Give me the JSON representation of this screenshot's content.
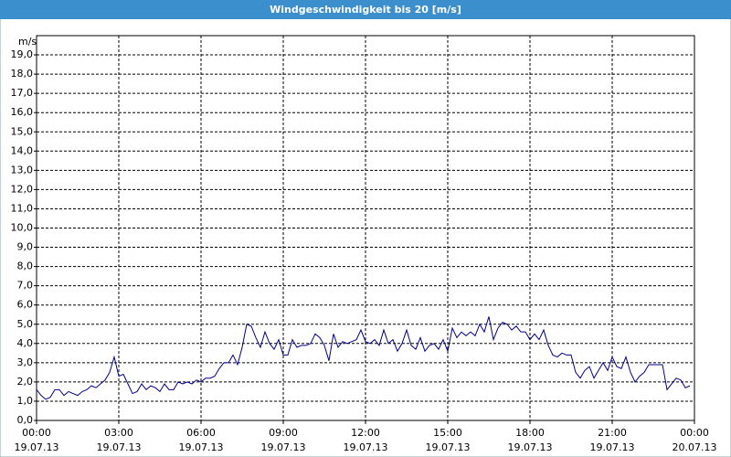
{
  "chart_data": {
    "type": "line",
    "title": "Windgeschwindigkeit bis 20 [m/s]",
    "y_unit": "m/s",
    "x": [
      0,
      10,
      20,
      30,
      40,
      50,
      60,
      70,
      80,
      90,
      100,
      110,
      120,
      130,
      140,
      150,
      160,
      170,
      180,
      190,
      200,
      210,
      220,
      230,
      240,
      250,
      260,
      270,
      280,
      290,
      300,
      310,
      320,
      330,
      340,
      350,
      360,
      370,
      380,
      390,
      400,
      410,
      420,
      430,
      440,
      450,
      460,
      470,
      480,
      490,
      500,
      510,
      520,
      530,
      540,
      550,
      560,
      570,
      580,
      590,
      600,
      610,
      620,
      630,
      640,
      650,
      660,
      670,
      680,
      690,
      700,
      710,
      720,
      730,
      740,
      750,
      760,
      770,
      780,
      790,
      800,
      810,
      820,
      830,
      840,
      850,
      860,
      870,
      880,
      890,
      900,
      910,
      920,
      930,
      940,
      950,
      960,
      970,
      980,
      990,
      1000,
      1010,
      1020,
      1030,
      1040,
      1050,
      1060,
      1070,
      1080,
      1090,
      1100,
      1110,
      1120,
      1130,
      1140,
      1150,
      1160,
      1170,
      1180,
      1190,
      1200,
      1210,
      1220,
      1230,
      1240,
      1250,
      1260,
      1270,
      1280,
      1290,
      1300,
      1310,
      1320,
      1330,
      1340,
      1350,
      1360,
      1370,
      1380,
      1390,
      1400,
      1410,
      1420,
      1430
    ],
    "series": [
      {
        "name": "Windgeschwindigkeit",
        "color": "#00008b",
        "values": [
          1.6,
          1.3,
          1.1,
          1.2,
          1.6,
          1.6,
          1.3,
          1.5,
          1.4,
          1.3,
          1.5,
          1.6,
          1.8,
          1.7,
          1.9,
          2.1,
          2.5,
          3.3,
          2.3,
          2.4,
          1.9,
          1.4,
          1.5,
          1.9,
          1.6,
          1.8,
          1.7,
          1.5,
          1.9,
          1.6,
          1.6,
          2.0,
          1.9,
          2.0,
          1.9,
          2.1,
          2.0,
          2.2,
          2.2,
          2.3,
          2.7,
          3.0,
          3.0,
          3.4,
          2.9,
          3.8,
          5.0,
          4.9,
          4.3,
          3.8,
          4.6,
          4.0,
          3.7,
          4.2,
          3.4,
          3.4,
          4.2,
          3.8,
          3.9,
          3.9,
          4.0,
          4.5,
          4.3,
          3.9,
          3.1,
          4.5,
          3.8,
          4.1,
          4.0,
          4.1,
          4.2,
          4.7,
          4.1,
          4.0,
          4.2,
          3.9,
          4.7,
          4.0,
          4.2,
          3.6,
          4.0,
          4.7,
          3.9,
          3.7,
          4.3,
          3.6,
          3.9,
          4.0,
          3.7,
          4.2,
          3.6,
          4.8,
          4.3,
          4.6,
          4.4,
          4.6,
          4.4,
          5.0,
          4.6,
          5.4,
          4.2,
          4.8,
          5.1,
          5.0,
          4.7,
          4.9,
          4.6,
          4.6,
          4.2,
          4.5,
          4.2,
          4.7,
          3.9,
          3.4,
          3.3,
          3.5,
          3.4,
          3.4,
          2.5,
          2.2,
          2.6,
          2.8,
          2.2,
          2.6,
          3.0,
          2.6,
          3.3,
          2.8,
          2.7,
          3.3,
          2.5,
          2.0,
          2.3,
          2.5,
          2.9,
          2.9,
          2.9,
          2.9,
          1.6,
          1.9,
          2.2,
          2.1,
          1.7,
          1.8
        ]
      }
    ],
    "xlim": [
      0,
      1440
    ],
    "xticks": [
      {
        "value": 0,
        "label": "00:00"
      },
      {
        "value": 180,
        "label": "03:00"
      },
      {
        "value": 360,
        "label": "06:00"
      },
      {
        "value": 540,
        "label": "09:00"
      },
      {
        "value": 720,
        "label": "12:00"
      },
      {
        "value": 900,
        "label": "15:00"
      },
      {
        "value": 1080,
        "label": "18:00"
      },
      {
        "value": 1260,
        "label": "21:00"
      },
      {
        "value": 1440,
        "label": "00:00"
      }
    ],
    "xtick_dates": [
      "19.07.13",
      "19.07.13",
      "19.07.13",
      "19.07.13",
      "19.07.13",
      "19.07.13",
      "19.07.13",
      "19.07.13",
      "20.07.13"
    ],
    "ylim": [
      0,
      20
    ],
    "yticks": [
      {
        "value": 0,
        "label": "0,0"
      },
      {
        "value": 1,
        "label": "1,0"
      },
      {
        "value": 2,
        "label": "2,0"
      },
      {
        "value": 3,
        "label": "3,0"
      },
      {
        "value": 4,
        "label": "4,0"
      },
      {
        "value": 5,
        "label": "5,0"
      },
      {
        "value": 6,
        "label": "6,0"
      },
      {
        "value": 7,
        "label": "7,0"
      },
      {
        "value": 8,
        "label": "8,0"
      },
      {
        "value": 9,
        "label": "9,0"
      },
      {
        "value": 10,
        "label": "10,0"
      },
      {
        "value": 11,
        "label": "11,0"
      },
      {
        "value": 12,
        "label": "12,0"
      },
      {
        "value": 13,
        "label": "13,0"
      },
      {
        "value": 14,
        "label": "14,0"
      },
      {
        "value": 15,
        "label": "15,0"
      },
      {
        "value": 16,
        "label": "16,0"
      },
      {
        "value": 17,
        "label": "17,0"
      },
      {
        "value": 18,
        "label": "18,0"
      },
      {
        "value": 19,
        "label": "19,0"
      }
    ],
    "grid": true
  }
}
